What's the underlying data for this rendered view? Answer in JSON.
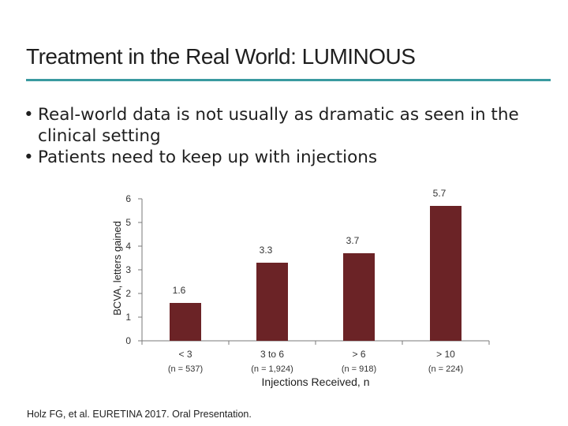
{
  "slide": {
    "title": "Treatment in the Real World: LUMINOUS",
    "accent_color": "#3a9aa0",
    "bullets": [
      "Real-world data is not usually as dramatic as seen in the clinical setting",
      "Patients need to keep up with injections"
    ],
    "bullet_glyph": "•",
    "citation": "Holz FG, et al. EURETINA 2017. Oral Presentation."
  },
  "chart_data": {
    "type": "bar",
    "categories": [
      "< 3",
      "3 to 6",
      "> 6",
      "> 10"
    ],
    "sublabels": [
      "(n = 537)",
      "(n = 1,924)",
      "(n = 918)",
      "(n = 224)"
    ],
    "series": [
      {
        "values": [
          1.6,
          3.3,
          3.7,
          5.7
        ]
      }
    ],
    "data_labels": [
      "1.6",
      "3.3",
      "3.7",
      "5.7"
    ],
    "xlabel": "Injections Received, n",
    "ylabel": "BCVA, letters gained",
    "ylim": [
      0,
      6
    ],
    "yticks": [
      "0",
      "1",
      "2",
      "3",
      "4",
      "5",
      "6"
    ],
    "grid": false,
    "bar_color": "#6b2326"
  }
}
